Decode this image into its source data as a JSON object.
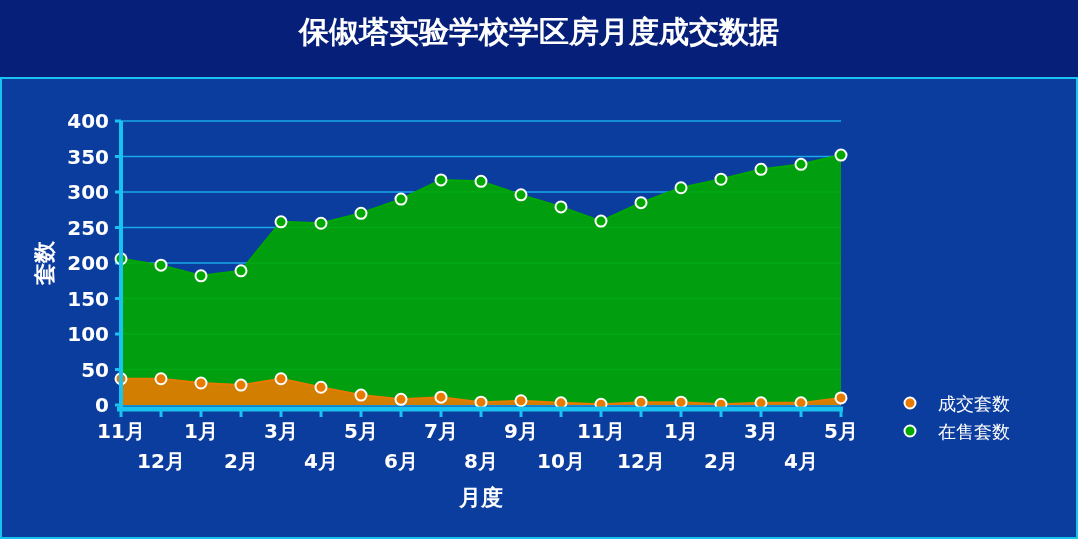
{
  "chart_data": {
    "type": "area",
    "title": "保俶塔实验学校学区房月度成交数据",
    "xlabel": "月度",
    "ylabel": "套数",
    "categories": [
      "11月",
      "12月",
      "1月",
      "2月",
      "3月",
      "4月",
      "5月",
      "6月",
      "7月",
      "8月",
      "9月",
      "10月",
      "11月",
      "12月",
      "1月",
      "2月",
      "3月",
      "4月",
      "5月"
    ],
    "series": [
      {
        "name": "在售套数",
        "color": "#00a800",
        "values": [
          206,
          197,
          182,
          189,
          258,
          256,
          270,
          290,
          317,
          315,
          296,
          279,
          259,
          285,
          306,
          318,
          332,
          339,
          352
        ]
      },
      {
        "name": "成交套数",
        "color": "#e87a00",
        "values": [
          37,
          37,
          31,
          28,
          37,
          25,
          14,
          8,
          11,
          4,
          6,
          3,
          1,
          4,
          4,
          1,
          3,
          3,
          10
        ]
      }
    ],
    "ylim": [
      0,
      400
    ],
    "yticks": [
      0,
      50,
      100,
      150,
      200,
      250,
      300,
      350,
      400
    ],
    "grid": "y",
    "legend": "bottom right",
    "marker": "circle"
  }
}
